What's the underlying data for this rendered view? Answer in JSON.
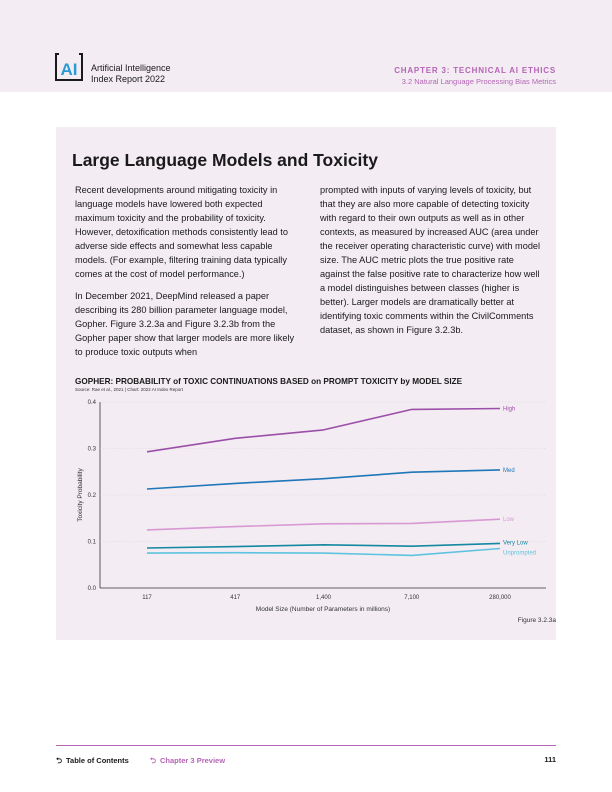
{
  "header": {
    "logo_text": "AI",
    "brand_line1": "Artificial Intelligence",
    "brand_line2": "Index Report 2022",
    "chapter": "CHAPTER 3: TECHNICAL AI ETHICS",
    "section": "3.2 Natural Language Processing Bias Metrics"
  },
  "main": {
    "title": "Large Language Models and Toxicity",
    "col1": [
      "Recent developments around mitigating toxicity in language models have lowered both expected maximum toxicity and the probability of toxicity. However, detoxification methods consistently lead to adverse side effects and somewhat less capable models. (For example, filtering training data typically comes at the cost of model performance.)",
      "In December 2021, DeepMind released a paper describing its 280 billion parameter language model, Gopher. Figure 3.2.3a and Figure 3.2.3b from the Gopher paper show that larger models are more likely to produce toxic outputs when"
    ],
    "col2": [
      "prompted with inputs of varying levels of toxicity, but that they are also more capable of detecting toxicity with regard to their own outputs as well as in other contexts, as measured by increased AUC (area under the receiver operating characteristic curve) with model size. The AUC metric plots the true positive rate against the false positive rate to characterize how well a model distinguishes between classes (higher is better). Larger models are dramatically better at identifying toxic comments within the CivilComments dataset, as shown in Figure 3.2.3b."
    ]
  },
  "chart_data": {
    "type": "line",
    "title": "GOPHER: PROBABILITY of TOXIC CONTINUATIONS BASED on PROMPT TOXICITY by MODEL SIZE",
    "source": "Source: Rae et al., 2021 | Chart: 2022 AI Index Report",
    "xlabel": "Model Size (Number of Parameters in millions)",
    "ylabel": "Toxicity Probability",
    "categories": [
      "117",
      "417",
      "1,400",
      "7,100",
      "280,000"
    ],
    "yticks": [
      "0.0",
      "0.1",
      "0.2",
      "0.3",
      "0.4"
    ],
    "ylim": [
      0,
      0.4
    ],
    "series": [
      {
        "name": "High",
        "color": "#9b4fa8",
        "values": [
          0.293,
          0.322,
          0.34,
          0.384,
          0.386
        ]
      },
      {
        "name": "Med",
        "color": "#1f77b8",
        "values": [
          0.213,
          0.225,
          0.235,
          0.249,
          0.254
        ]
      },
      {
        "name": "Low",
        "color": "#d898d4",
        "values": [
          0.125,
          0.132,
          0.138,
          0.139,
          0.148
        ]
      },
      {
        "name": "Very Low",
        "color": "#1388a0",
        "values": [
          0.086,
          0.089,
          0.093,
          0.09,
          0.096
        ]
      },
      {
        "name": "Unprompted",
        "color": "#5ec3de",
        "values": [
          0.075,
          0.076,
          0.075,
          0.07,
          0.085
        ]
      }
    ],
    "figure_label": "Figure 3.2.3a"
  },
  "footer": {
    "toc": "Table of Contents",
    "preview": "Chapter 3 Preview",
    "page": "111"
  }
}
